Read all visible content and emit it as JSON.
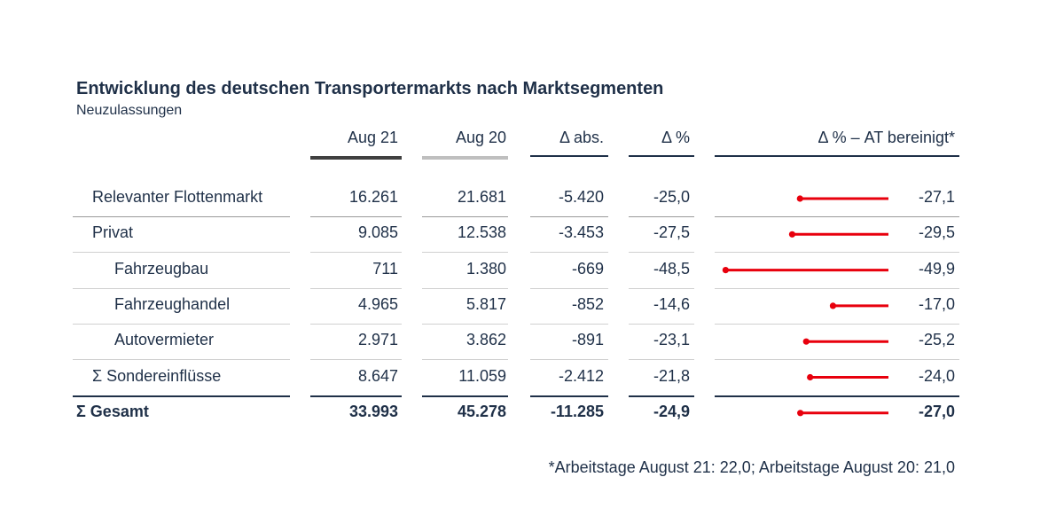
{
  "title": "Entwicklung des deutschen Transportermarkts nach Marktsegmenten",
  "subtitle": "Neuzulassungen",
  "columns": {
    "aug21": "Aug 21",
    "aug20": "Aug 20",
    "delta_abs": "Δ abs.",
    "delta_pct": "Δ %",
    "delta_pct_adj": "Δ % – AT bereinigt*"
  },
  "rows": [
    {
      "label": "Relevanter Flottenmarkt",
      "indent": false,
      "bold": false,
      "aug21": "16.261",
      "aug20": "21.681",
      "delta_abs": "-5.420",
      "delta_pct": "-25,0",
      "delta_pct_adj": "-27,1"
    },
    {
      "label": "Privat",
      "indent": false,
      "bold": false,
      "aug21": "9.085",
      "aug20": "12.538",
      "delta_abs": "-3.453",
      "delta_pct": "-27,5",
      "delta_pct_adj": "-29,5"
    },
    {
      "label": "Fahrzeugbau",
      "indent": true,
      "bold": false,
      "aug21": "711",
      "aug20": "1.380",
      "delta_abs": "-669",
      "delta_pct": "-48,5",
      "delta_pct_adj": "-49,9"
    },
    {
      "label": "Fahrzeughandel",
      "indent": true,
      "bold": false,
      "aug21": "4.965",
      "aug20": "5.817",
      "delta_abs": "-852",
      "delta_pct": "-14,6",
      "delta_pct_adj": "-17,0"
    },
    {
      "label": "Autovermieter",
      "indent": true,
      "bold": false,
      "aug21": "2.971",
      "aug20": "3.862",
      "delta_abs": "-891",
      "delta_pct": "-23,1",
      "delta_pct_adj": "-25,2"
    },
    {
      "label": "Σ Sondereinflüsse",
      "indent": false,
      "bold": false,
      "aug21": "8.647",
      "aug20": "11.059",
      "delta_abs": "-2.412",
      "delta_pct": "-21,8",
      "delta_pct_adj": "-24,0"
    },
    {
      "label": "Σ Gesamt",
      "indent": false,
      "bold": true,
      "aug21": "33.993",
      "aug20": "45.278",
      "delta_abs": "-11.285",
      "delta_pct": "-24,9",
      "delta_pct_adj": "-27,0"
    }
  ],
  "footnote": "*Arbeitstage August 21: 22,0; Arbeitstage August 20: 21,0",
  "colors": {
    "text": "#1f3048",
    "bar": "#e8000d",
    "aug21_line": "#404040",
    "aug20_line": "#bfbfbf",
    "divider": "#1f3048",
    "row_divider": "#bfbfbf"
  },
  "chart_data": {
    "type": "bar",
    "orientation": "horizontal",
    "categories": [
      "Relevanter Flottenmarkt",
      "Privat",
      "Fahrzeugbau",
      "Fahrzeughandel",
      "Autovermieter",
      "Σ Sondereinflüsse",
      "Σ Gesamt"
    ],
    "values": [
      -27.1,
      -29.5,
      -49.9,
      -17.0,
      -25.2,
      -24.0,
      -27.0
    ],
    "title": "Entwicklung des deutschen Transportermarkts nach Marktsegmenten",
    "subtitle": "Neuzulassungen",
    "xlabel": "",
    "ylabel": "",
    "xlim": [
      -50,
      0
    ],
    "marker": "lollipop"
  }
}
